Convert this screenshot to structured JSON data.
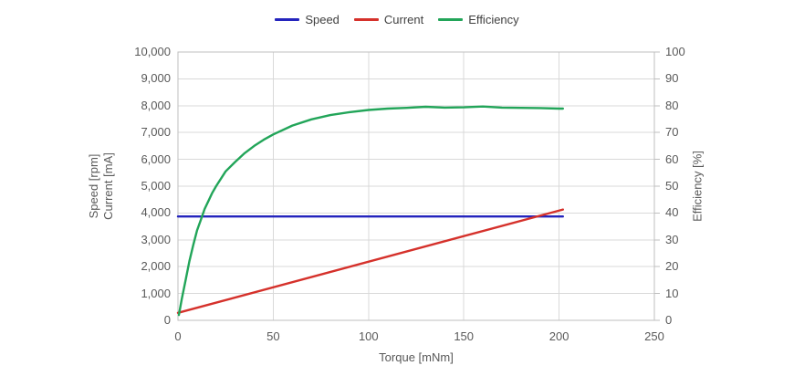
{
  "colors": {
    "background": "#ffffff",
    "gridline": "#d9d9d9",
    "plot_border": "#bfbfbf",
    "axis_tick": "#bfbfbf",
    "tick_text": "#595959",
    "axis_title_text": "#595959",
    "legend_text": "#404040",
    "speed": "#2424bd",
    "current": "#d5312b",
    "efficiency": "#22a559"
  },
  "chart_data": {
    "type": "line",
    "title": "",
    "legend_position": "top",
    "grid": true,
    "x_axis": {
      "label": "Torque [mNm]",
      "min": 0,
      "max": 250,
      "tick_step": 50,
      "tick_labels": [
        "0",
        "50",
        "100",
        "150",
        "200",
        "250"
      ]
    },
    "y_axis_left": {
      "label": "Speed [rpm] Current [mA]",
      "label_lines": [
        "Speed [rpm]",
        "Current [mA]"
      ],
      "min": 0,
      "max": 10000,
      "tick_step": 1000,
      "tick_labels": [
        "0",
        "1,000",
        "2,000",
        "3,000",
        "4,000",
        "5,000",
        "6,000",
        "7,000",
        "8,000",
        "9,000",
        "10,000"
      ]
    },
    "y_axis_right": {
      "label": "Efficiency [%]",
      "min": 0,
      "max": 100,
      "tick_step": 10,
      "tick_labels": [
        "0",
        "10",
        "20",
        "30",
        "40",
        "50",
        "60",
        "70",
        "80",
        "90",
        "100"
      ]
    },
    "series": [
      {
        "name": "Speed",
        "axis": "left",
        "color": "#2424bd",
        "unit": "rpm",
        "points": [
          [
            0,
            3870
          ],
          [
            202,
            3870
          ]
        ]
      },
      {
        "name": "Current",
        "axis": "left",
        "color": "#d5312b",
        "unit": "mA",
        "points": [
          [
            0,
            280
          ],
          [
            202,
            4130
          ]
        ]
      },
      {
        "name": "Efficiency",
        "axis": "right",
        "color": "#22a559",
        "unit": "%",
        "points": [
          [
            0.5,
            2
          ],
          [
            2,
            8
          ],
          [
            4,
            15
          ],
          [
            6,
            22
          ],
          [
            8,
            28
          ],
          [
            10,
            33.5
          ],
          [
            12,
            37.5
          ],
          [
            14,
            41.5
          ],
          [
            16,
            44.5
          ],
          [
            18,
            47.5
          ],
          [
            20,
            50
          ],
          [
            25,
            55.5
          ],
          [
            30,
            59
          ],
          [
            35,
            62.3
          ],
          [
            40,
            65
          ],
          [
            45,
            67.3
          ],
          [
            50,
            69.3
          ],
          [
            60,
            72.6
          ],
          [
            70,
            74.9
          ],
          [
            80,
            76.5
          ],
          [
            90,
            77.6
          ],
          [
            100,
            78.4
          ],
          [
            110,
            78.9
          ],
          [
            120,
            79.2
          ],
          [
            130,
            79.6
          ],
          [
            140,
            79.3
          ],
          [
            150,
            79.4
          ],
          [
            160,
            79.7
          ],
          [
            170,
            79.3
          ],
          [
            180,
            79.2
          ],
          [
            190,
            79.1
          ],
          [
            200,
            78.9
          ],
          [
            202,
            78.9
          ]
        ]
      }
    ]
  }
}
